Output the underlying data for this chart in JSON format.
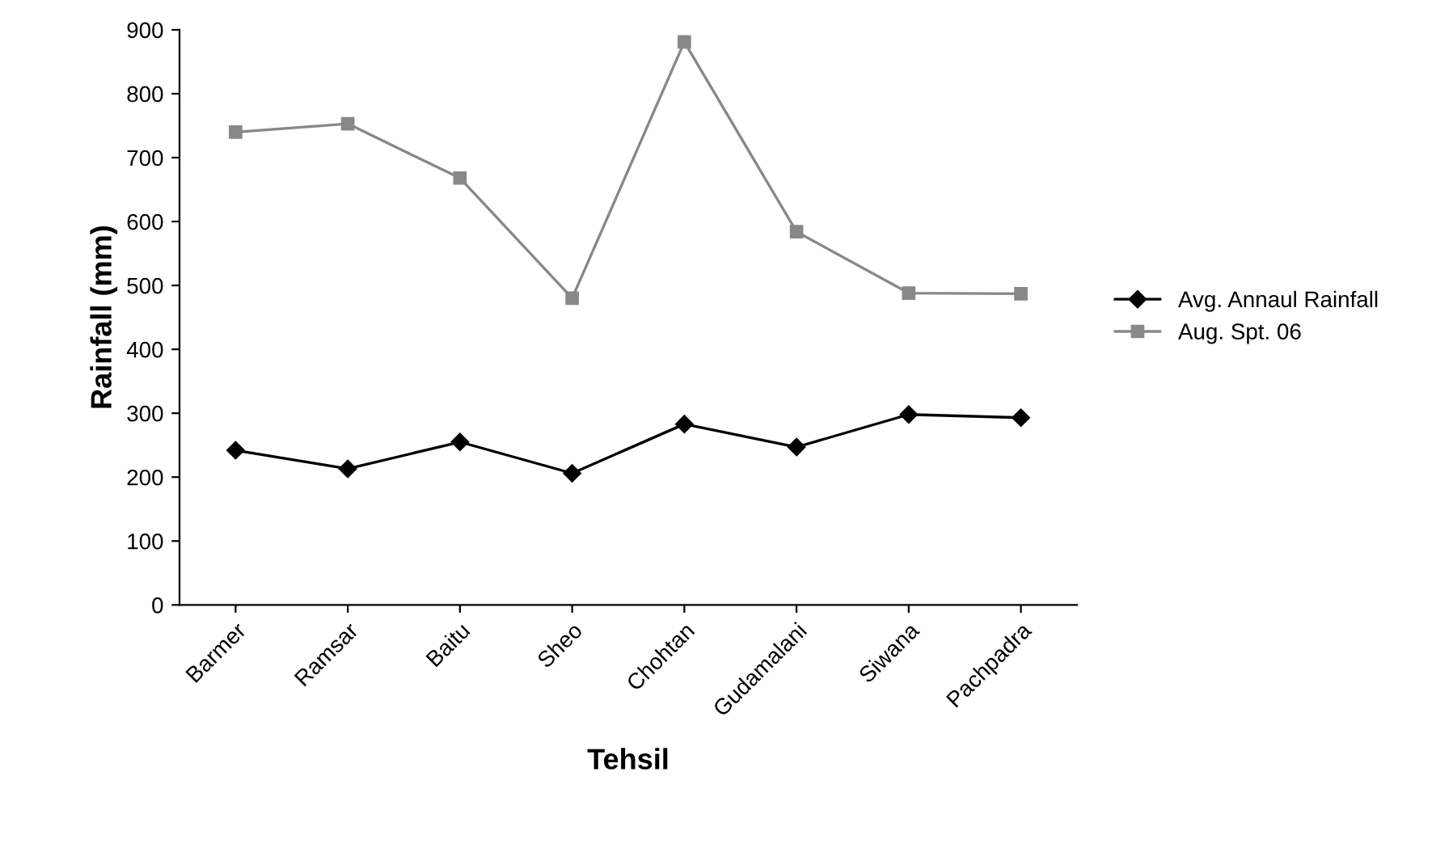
{
  "chart_data": {
    "type": "line",
    "xlabel": "Tehsil",
    "ylabel": "Rainfall (mm)",
    "categories": [
      "Barmer",
      "Ramsar",
      "Baitu",
      "Sheo",
      "Chohtan",
      "Gudamalani",
      "Siwana",
      "Pachpadra"
    ],
    "series": [
      {
        "name": "Avg. Annaul Rainfall",
        "color": "#000000",
        "marker": "diamond",
        "values": [
          242,
          213,
          255,
          206,
          283,
          247,
          298,
          293
        ]
      },
      {
        "name": "Aug. Spt. 06",
        "color": "#888888",
        "marker": "square",
        "values": [
          740,
          753,
          668,
          480,
          881,
          584,
          488,
          487
        ]
      }
    ],
    "ylim": [
      0,
      900
    ],
    "yticks": [
      0,
      100,
      200,
      300,
      400,
      500,
      600,
      700,
      800,
      900
    ],
    "grid": false,
    "legend": "right"
  }
}
